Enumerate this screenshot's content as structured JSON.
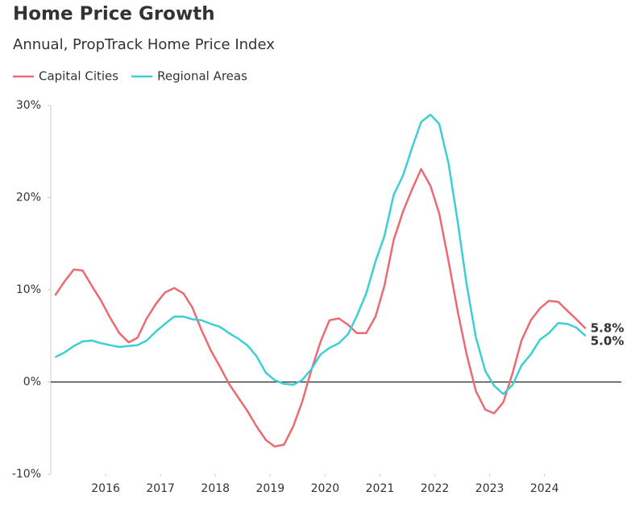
{
  "chart_data": {
    "type": "line",
    "title": "Home Price Growth",
    "subtitle": "Annual, PropTrack Home Price Index",
    "x": [
      2015.08,
      2015.25,
      2015.42,
      2015.58,
      2015.75,
      2015.92,
      2016.08,
      2016.25,
      2016.42,
      2016.58,
      2016.75,
      2016.92,
      2017.08,
      2017.25,
      2017.42,
      2017.58,
      2017.75,
      2017.92,
      2018.08,
      2018.25,
      2018.42,
      2018.58,
      2018.75,
      2018.92,
      2019.08,
      2019.25,
      2019.42,
      2019.58,
      2019.75,
      2019.92,
      2020.08,
      2020.25,
      2020.42,
      2020.58,
      2020.75,
      2020.92,
      2021.08,
      2021.25,
      2021.42,
      2021.58,
      2021.75,
      2021.92,
      2022.08,
      2022.25,
      2022.42,
      2022.58,
      2022.75,
      2022.92,
      2023.08,
      2023.25,
      2023.42,
      2023.58,
      2023.75,
      2023.92,
      2024.08,
      2024.25,
      2024.42,
      2024.58,
      2024.75
    ],
    "series": [
      {
        "name": "Capital Cities",
        "color": "#ec6a72",
        "end_label": "5.8%",
        "values": [
          9.4,
          10.9,
          12.2,
          12.1,
          10.4,
          8.8,
          7.0,
          5.3,
          4.3,
          4.8,
          6.9,
          8.5,
          9.7,
          10.2,
          9.6,
          8.1,
          5.6,
          3.4,
          1.7,
          -0.2,
          -1.7,
          -3.1,
          -4.8,
          -6.3,
          -7.0,
          -6.8,
          -4.8,
          -2.2,
          1.3,
          4.4,
          6.7,
          6.9,
          6.2,
          5.3,
          5.3,
          7.1,
          10.4,
          15.4,
          18.5,
          20.8,
          23.1,
          21.3,
          18.3,
          13.1,
          7.6,
          3.0,
          -1.0,
          -3.0,
          -3.4,
          -2.2,
          1.0,
          4.5,
          6.7,
          8.0,
          8.8,
          8.7,
          7.7,
          6.8,
          5.8
        ]
      },
      {
        "name": "Regional Areas",
        "color": "#3ccfd3",
        "end_label": "5.0%",
        "values": [
          2.7,
          3.2,
          3.9,
          4.4,
          4.5,
          4.2,
          4.0,
          3.8,
          3.9,
          4.0,
          4.5,
          5.5,
          6.3,
          7.1,
          7.1,
          6.8,
          6.7,
          6.3,
          6.0,
          5.3,
          4.7,
          4.0,
          2.8,
          1.0,
          0.2,
          -0.2,
          -0.3,
          0.2,
          1.4,
          3.0,
          3.7,
          4.2,
          5.2,
          7.2,
          9.6,
          13.1,
          15.8,
          20.3,
          22.4,
          25.3,
          28.2,
          29.0,
          28.0,
          23.7,
          17.3,
          10.6,
          4.8,
          1.2,
          -0.4,
          -1.3,
          -0.3,
          1.8,
          3.0,
          4.6,
          5.3,
          6.4,
          6.3,
          5.9,
          5.0
        ]
      }
    ],
    "xlim": [
      2015,
      2025.4
    ],
    "xticks": [
      2016,
      2017,
      2018,
      2019,
      2020,
      2021,
      2022,
      2023,
      2024
    ],
    "ylim": [
      -10,
      30
    ],
    "yticks": [
      {
        "value": -10,
        "label": "-10%"
      },
      {
        "value": 0,
        "label": "0%"
      },
      {
        "value": 10,
        "label": "10%"
      },
      {
        "value": 20,
        "label": "20%"
      },
      {
        "value": 30,
        "label": "30%"
      }
    ],
    "legend": "top-left"
  }
}
